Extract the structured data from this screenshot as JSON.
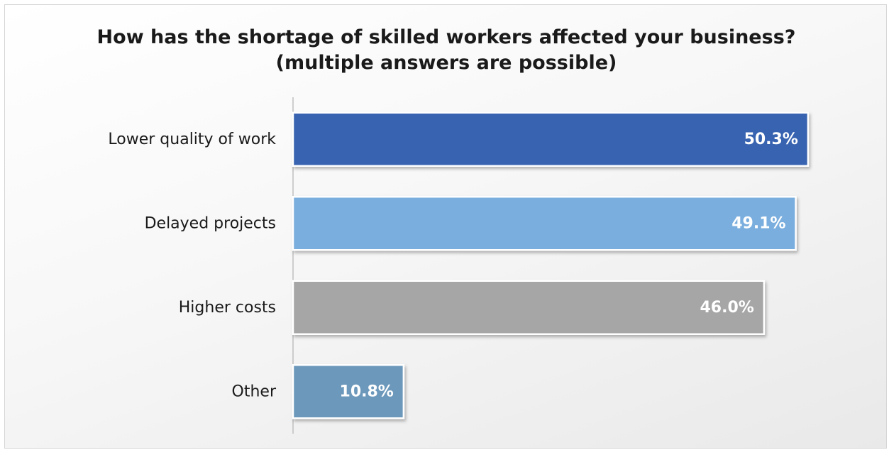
{
  "chart_data": {
    "type": "bar",
    "orientation": "horizontal",
    "title_lines": [
      "How has the shortage of skilled workers affected your business?",
      "(multiple answers are possible)"
    ],
    "categories": [
      "Lower quality of work",
      "Delayed projects",
      "Higher costs",
      "Other"
    ],
    "values": [
      50.3,
      49.1,
      46.0,
      10.8
    ],
    "value_labels": [
      "50.3%",
      "49.1%",
      "46.0%",
      "10.8%"
    ],
    "unit": "%",
    "bar_colors": [
      "#3963b0",
      "#7aaede",
      "#a6a6a6",
      "#6c98bb"
    ],
    "xlim": [
      0,
      51
    ],
    "grid": false,
    "legend": "none"
  }
}
